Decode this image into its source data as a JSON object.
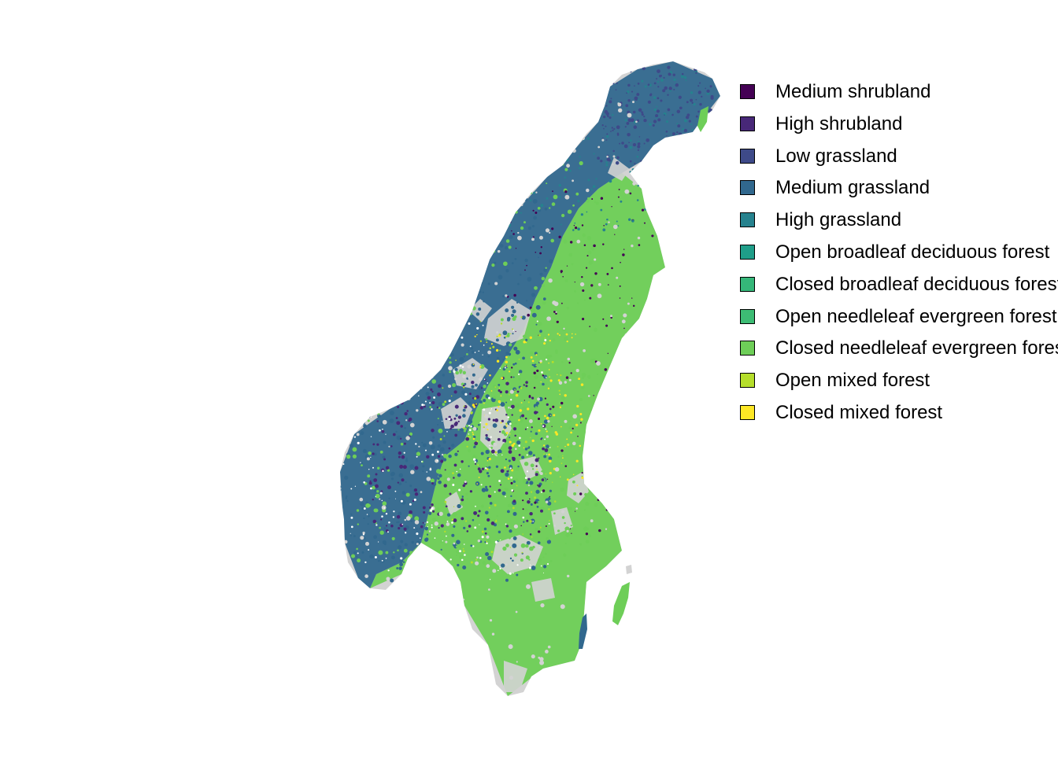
{
  "map": {
    "region": "Scandinavian Peninsula (Norway and Sweden)",
    "background_color": "#ffffff",
    "no_data_color": "#d3d3d3",
    "dominant_class": "Closed needleleaf evergreen forest",
    "secondary_class": "Medium grassland"
  },
  "legend": {
    "items": [
      {
        "label": "Medium shrubland",
        "color": "#440154"
      },
      {
        "label": "High shrubland",
        "color": "#482878"
      },
      {
        "label": "Low grassland",
        "color": "#3e4a89"
      },
      {
        "label": "Medium grassland",
        "color": "#31688e"
      },
      {
        "label": "High grassland",
        "color": "#26828e"
      },
      {
        "label": "Open broadleaf deciduous forest",
        "color": "#1f9e89"
      },
      {
        "label": "Closed broadleaf deciduous forest",
        "color": "#35b779"
      },
      {
        "label": "Open needleleaf evergreen forest",
        "color": "#3dbc74"
      },
      {
        "label": "Closed needleleaf evergreen forest",
        "color": "#6ece58"
      },
      {
        "label": "Open mixed forest",
        "color": "#b5de2b"
      },
      {
        "label": "Closed mixed forest",
        "color": "#fde725"
      }
    ]
  }
}
